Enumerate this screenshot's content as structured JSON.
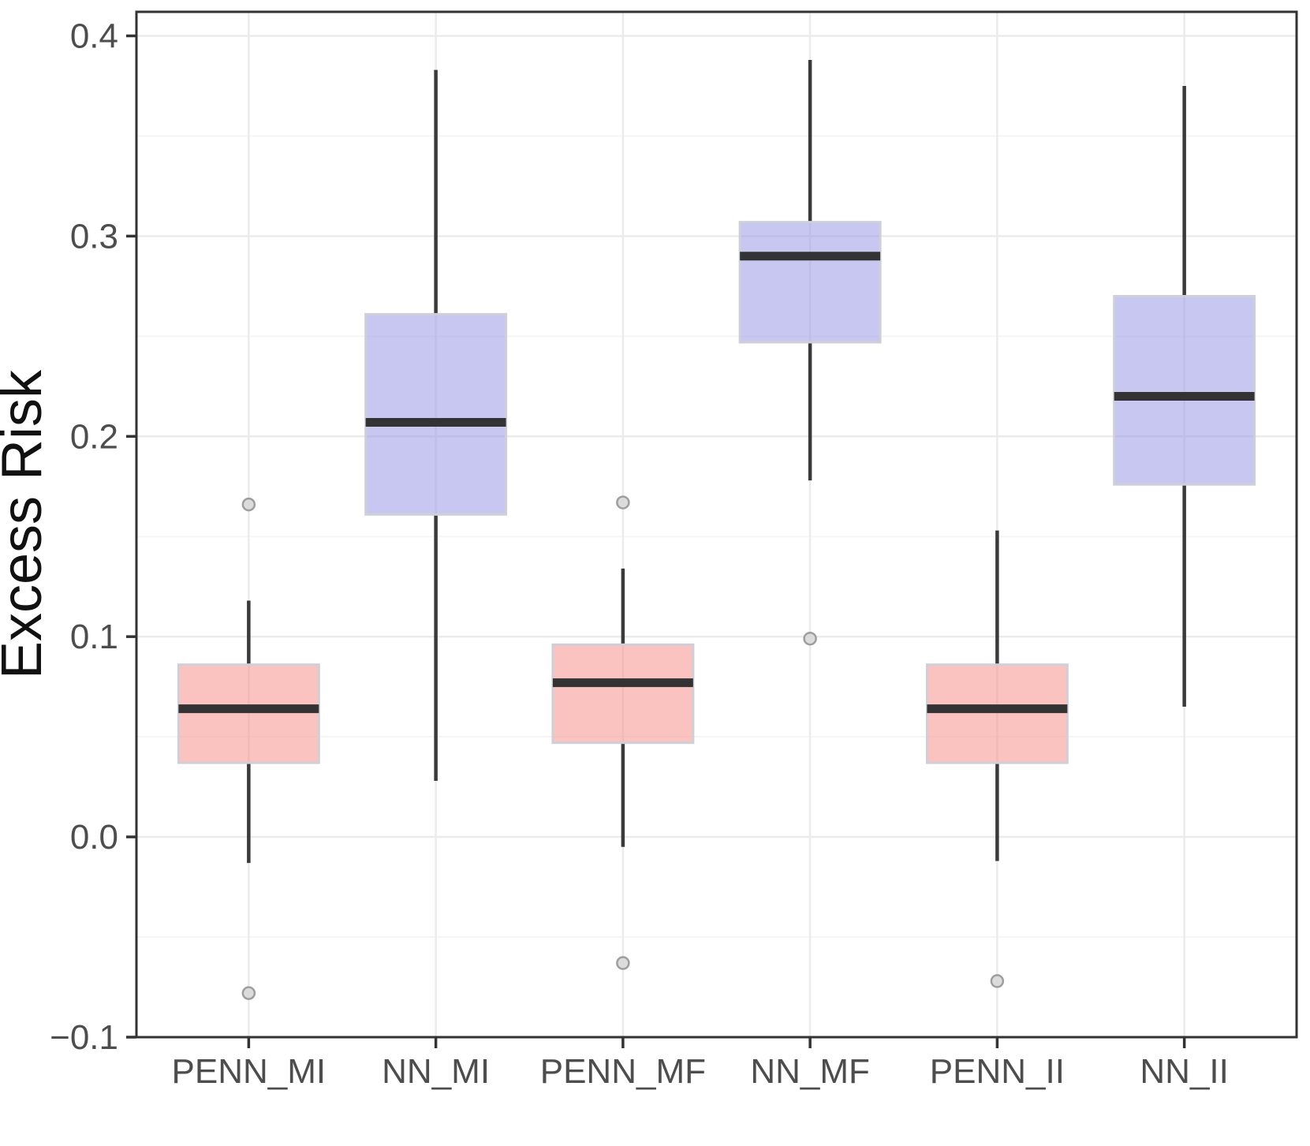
{
  "chart_data": {
    "type": "boxplot",
    "title": "",
    "xlabel": "",
    "ylabel": "Excess Risk",
    "ylim": [
      -0.1,
      0.412
    ],
    "grid": true,
    "legend_position": "none",
    "y_ticks": [
      {
        "value": -0.1,
        "label": "−0.1"
      },
      {
        "value": 0.0,
        "label": "0.0"
      },
      {
        "value": 0.1,
        "label": "0.1"
      },
      {
        "value": 0.2,
        "label": "0.2"
      },
      {
        "value": 0.3,
        "label": "0.3"
      },
      {
        "value": 0.4,
        "label": "0.4"
      }
    ],
    "y_minor_ticks": [
      -0.05,
      0.05,
      0.15,
      0.25,
      0.35
    ],
    "categories": [
      "PENN_MI",
      "NN_MI",
      "PENN_MF",
      "NN_MF",
      "PENN_II",
      "NN_II"
    ],
    "series": [
      {
        "name": "PENN_MI",
        "group": "PENN",
        "whisker_low": -0.013,
        "q1": 0.037,
        "median": 0.064,
        "q3": 0.086,
        "whisker_high": 0.118,
        "outliers": [
          0.166,
          -0.078
        ]
      },
      {
        "name": "NN_MI",
        "group": "NN",
        "whisker_low": 0.028,
        "q1": 0.161,
        "median": 0.207,
        "q3": 0.261,
        "whisker_high": 0.383,
        "outliers": []
      },
      {
        "name": "PENN_MF",
        "group": "PENN",
        "whisker_low": -0.005,
        "q1": 0.047,
        "median": 0.077,
        "q3": 0.096,
        "whisker_high": 0.134,
        "outliers": [
          0.167,
          -0.063
        ]
      },
      {
        "name": "NN_MF",
        "group": "NN",
        "whisker_low": 0.178,
        "q1": 0.247,
        "median": 0.29,
        "q3": 0.307,
        "whisker_high": 0.388,
        "outliers": [
          0.099
        ]
      },
      {
        "name": "PENN_II",
        "group": "PENN",
        "whisker_low": -0.012,
        "q1": 0.037,
        "median": 0.064,
        "q3": 0.086,
        "whisker_high": 0.153,
        "outliers": [
          -0.072
        ]
      },
      {
        "name": "NN_II",
        "group": "NN",
        "whisker_low": 0.065,
        "q1": 0.176,
        "median": 0.22,
        "q3": 0.27,
        "whisker_high": 0.375,
        "outliers": []
      }
    ],
    "colors": {
      "PENN_fill": "#F7918D",
      "NN_fill": "#9A99E8",
      "fill_opacity": 0.55,
      "box_border": "#CFCFD8",
      "median": "#333333",
      "whisker": "#3A3A3A",
      "outlier_fill": "#D8D8D8",
      "outlier_stroke": "#9E9E9E",
      "grid_major": "#EBEBEB",
      "grid_minor": "#F5F5F5",
      "panel_border": "#333333",
      "axis_text": "#4d4d4d",
      "axis_title": "#111111"
    }
  }
}
